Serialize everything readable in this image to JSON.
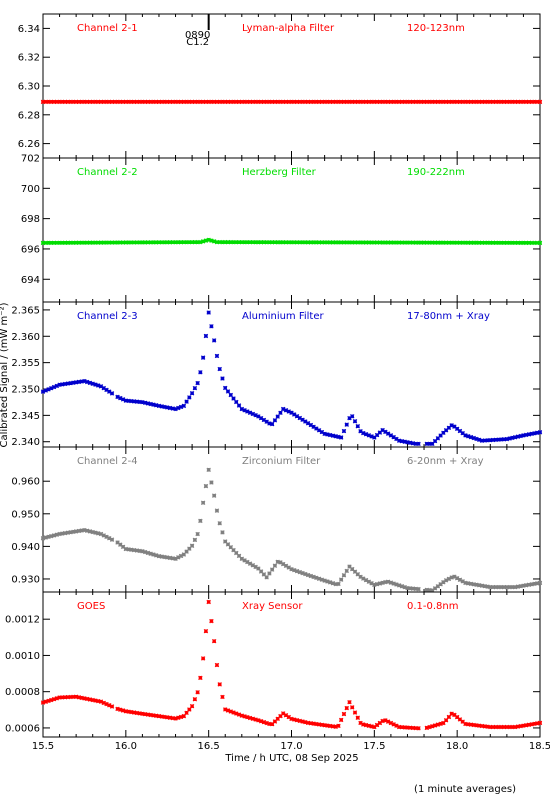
{
  "chart_data": {
    "type": "scatter",
    "x_axis": {
      "label": "Time / h UTC, 08 Sep 2025",
      "range": [
        15.5,
        18.5
      ],
      "ticks": [
        "15.5",
        "16.0",
        "16.5",
        "17.0",
        "17.5",
        "18.0",
        "18.5"
      ]
    },
    "y_axis_label": "Calibrated Signal / (mW m⁻²)",
    "footnote": "(1 minute averages)",
    "flare_marker": {
      "x": 16.5,
      "labels": [
        "0890",
        "C1.2"
      ]
    },
    "panels": [
      {
        "name": "Channel 2-1",
        "filter": "Lyman-alpha Filter",
        "band": "120-123nm",
        "color": "#ff0000",
        "ylim": [
          6.25,
          6.35
        ],
        "yticks": [
          "6.26",
          "6.28",
          "6.30",
          "6.32",
          "6.34"
        ],
        "points": [
          [
            15.5,
            6.289
          ],
          [
            16.5,
            6.289
          ],
          [
            18.5,
            6.289
          ]
        ]
      },
      {
        "name": "Channel 2-2",
        "filter": "Herzberg Filter",
        "band": "190-222nm",
        "color": "#00dd00",
        "ylim": [
          692.5,
          702.0
        ],
        "yticks": [
          "694",
          "696",
          "698",
          "700",
          "702"
        ],
        "points": [
          [
            15.5,
            696.4
          ],
          [
            16.45,
            696.45
          ],
          [
            16.5,
            696.6
          ],
          [
            16.55,
            696.45
          ],
          [
            18.5,
            696.4
          ]
        ]
      },
      {
        "name": "Channel 2-3",
        "filter": "Aluminium Filter",
        "band": "17-80nm + Xray",
        "color": "#0000cc",
        "ylim": [
          2.339,
          2.3665
        ],
        "yticks": [
          "2.340",
          "2.345",
          "2.350",
          "2.355",
          "2.360",
          "2.365"
        ],
        "points": [
          [
            15.5,
            2.3495
          ],
          [
            15.6,
            2.3508
          ],
          [
            15.75,
            2.3515
          ],
          [
            15.85,
            2.3505
          ],
          [
            15.95,
            2.3485
          ],
          [
            16.0,
            2.3478
          ],
          [
            16.1,
            2.3475
          ],
          [
            16.2,
            2.3468
          ],
          [
            16.3,
            2.3462
          ],
          [
            16.35,
            2.3468
          ],
          [
            16.4,
            2.3492
          ],
          [
            16.44,
            2.3515
          ],
          [
            16.47,
            2.3565
          ],
          [
            16.5,
            2.3645
          ],
          [
            16.53,
            2.3598
          ],
          [
            16.56,
            2.3545
          ],
          [
            16.6,
            2.3502
          ],
          [
            16.7,
            2.3462
          ],
          [
            16.8,
            2.3448
          ],
          [
            16.88,
            2.3432
          ],
          [
            16.95,
            2.3462
          ],
          [
            17.0,
            2.3455
          ],
          [
            17.1,
            2.3435
          ],
          [
            17.2,
            2.3415
          ],
          [
            17.3,
            2.3408
          ],
          [
            17.36,
            2.3452
          ],
          [
            17.42,
            2.3418
          ],
          [
            17.5,
            2.3408
          ],
          [
            17.55,
            2.3422
          ],
          [
            17.65,
            2.3402
          ],
          [
            17.75,
            2.3396
          ],
          [
            17.85,
            2.3396
          ],
          [
            17.92,
            2.3418
          ],
          [
            17.97,
            2.3432
          ],
          [
            18.05,
            2.3412
          ],
          [
            18.15,
            2.3402
          ],
          [
            18.3,
            2.3405
          ],
          [
            18.4,
            2.3412
          ],
          [
            18.5,
            2.3418
          ]
        ]
      },
      {
        "name": "Channel 2-4",
        "filter": "Zirconium Filter",
        "band": "6-20nm + Xray",
        "color": "#808080",
        "ylim": [
          0.926,
          0.9705
        ],
        "yticks": [
          "0.930",
          "0.940",
          "0.950",
          "0.960"
        ],
        "points": [
          [
            15.5,
            0.9425
          ],
          [
            15.6,
            0.9438
          ],
          [
            15.75,
            0.945
          ],
          [
            15.85,
            0.9438
          ],
          [
            15.95,
            0.9412
          ],
          [
            16.0,
            0.9392
          ],
          [
            16.1,
            0.9385
          ],
          [
            16.2,
            0.937
          ],
          [
            16.3,
            0.9362
          ],
          [
            16.35,
            0.9375
          ],
          [
            16.4,
            0.9402
          ],
          [
            16.44,
            0.9445
          ],
          [
            16.47,
            0.9545
          ],
          [
            16.5,
            0.9635
          ],
          [
            16.53,
            0.9565
          ],
          [
            16.56,
            0.9482
          ],
          [
            16.6,
            0.9415
          ],
          [
            16.7,
            0.9362
          ],
          [
            16.8,
            0.9332
          ],
          [
            16.85,
            0.9305
          ],
          [
            16.92,
            0.9355
          ],
          [
            17.0,
            0.933
          ],
          [
            17.1,
            0.9312
          ],
          [
            17.2,
            0.9295
          ],
          [
            17.28,
            0.9282
          ],
          [
            17.35,
            0.9338
          ],
          [
            17.42,
            0.9305
          ],
          [
            17.5,
            0.9282
          ],
          [
            17.58,
            0.9292
          ],
          [
            17.7,
            0.9272
          ],
          [
            17.85,
            0.9265
          ],
          [
            17.93,
            0.9295
          ],
          [
            17.98,
            0.9308
          ],
          [
            18.05,
            0.9288
          ],
          [
            18.2,
            0.9275
          ],
          [
            18.35,
            0.9275
          ],
          [
            18.5,
            0.9288
          ]
        ]
      },
      {
        "name": "GOES",
        "filter": "Xray Sensor",
        "band": "0.1-0.8nm",
        "color": "#ff0000",
        "ylim": [
          0.00055,
          0.00135
        ],
        "yticks": [
          "0.0006",
          "0.0008",
          "0.0010",
          "0.0012"
        ],
        "points": [
          [
            15.5,
            0.00074
          ],
          [
            15.6,
            0.000768
          ],
          [
            15.7,
            0.000772
          ],
          [
            15.85,
            0.000745
          ],
          [
            15.95,
            0.000705
          ],
          [
            16.0,
            0.000692
          ],
          [
            16.1,
            0.000678
          ],
          [
            16.2,
            0.000665
          ],
          [
            16.3,
            0.000652
          ],
          [
            16.35,
            0.000665
          ],
          [
            16.4,
            0.00072
          ],
          [
            16.44,
            0.000812
          ],
          [
            16.47,
            0.001005
          ],
          [
            16.5,
            0.001295
          ],
          [
            16.53,
            0.001105
          ],
          [
            16.56,
            0.000868
          ],
          [
            16.6,
            0.000702
          ],
          [
            16.7,
            0.000668
          ],
          [
            16.8,
            0.000642
          ],
          [
            16.88,
            0.000618
          ],
          [
            16.95,
            0.00068
          ],
          [
            17.0,
            0.00065
          ],
          [
            17.1,
            0.000628
          ],
          [
            17.2,
            0.000615
          ],
          [
            17.28,
            0.000605
          ],
          [
            17.35,
            0.000742
          ],
          [
            17.42,
            0.000622
          ],
          [
            17.5,
            0.000605
          ],
          [
            17.56,
            0.000645
          ],
          [
            17.65,
            0.000605
          ],
          [
            17.8,
            0.000596
          ],
          [
            17.92,
            0.000628
          ],
          [
            17.97,
            0.000682
          ],
          [
            18.05,
            0.000622
          ],
          [
            18.2,
            0.000605
          ],
          [
            18.35,
            0.000605
          ],
          [
            18.45,
            0.00062
          ],
          [
            18.5,
            0.000628
          ]
        ]
      }
    ]
  }
}
